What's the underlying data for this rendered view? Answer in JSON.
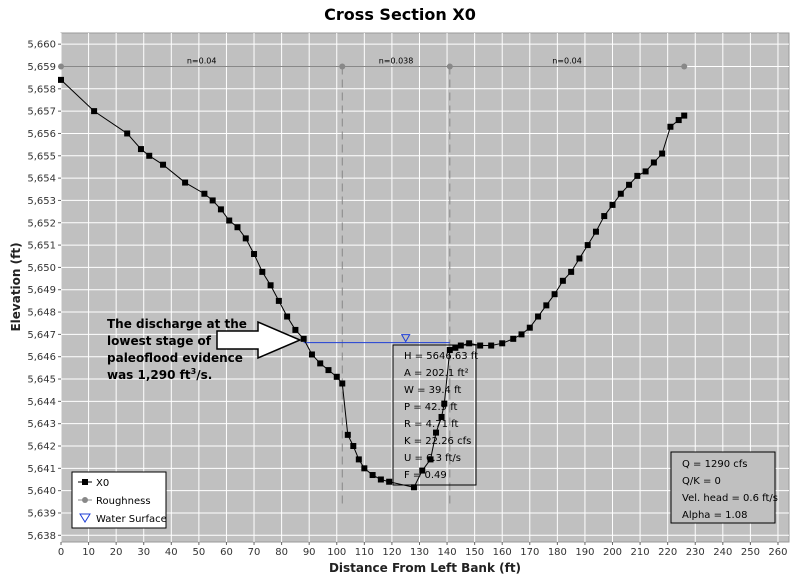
{
  "chart_data": {
    "type": "line",
    "title": "Cross Section X0",
    "xlabel": "Distance From Left Bank (ft)",
    "ylabel": "Elevation (ft)",
    "xlim": [
      0,
      264
    ],
    "ylim": [
      5637.7,
      5660.5
    ],
    "xticks": [
      0,
      10,
      20,
      30,
      40,
      50,
      60,
      70,
      80,
      90,
      100,
      110,
      120,
      130,
      140,
      150,
      160,
      170,
      180,
      190,
      200,
      210,
      220,
      230,
      240,
      250,
      260
    ],
    "yticks": [
      5638,
      5639,
      5640,
      5641,
      5642,
      5643,
      5644,
      5645,
      5646,
      5647,
      5648,
      5649,
      5650,
      5651,
      5652,
      5653,
      5654,
      5655,
      5656,
      5657,
      5658,
      5659,
      5660
    ],
    "ytick_labels": [
      "5,638",
      "5,639",
      "5,640",
      "5,641",
      "5,642",
      "5,643",
      "5,644",
      "5,645",
      "5,646",
      "5,647",
      "5,648",
      "5,649",
      "5,650",
      "5,651",
      "5,652",
      "5,653",
      "5,654",
      "5,655",
      "5,656",
      "5,657",
      "5,658",
      "5,659",
      "5,660"
    ],
    "grid": true,
    "legend_placement": "bottom-left",
    "series": [
      {
        "name": "X0",
        "color": "#000000",
        "marker": "square",
        "x": [
          0,
          12,
          24,
          29,
          32,
          37,
          45,
          52,
          55,
          58,
          61,
          64,
          67,
          70,
          73,
          76,
          79,
          82,
          85,
          88,
          91,
          94,
          97,
          100,
          102,
          104,
          106,
          108,
          110,
          113,
          116,
          119,
          128,
          131,
          134,
          136,
          138,
          139,
          141,
          143,
          145,
          148,
          152,
          156,
          160,
          164,
          167,
          170,
          173,
          176,
          179,
          182,
          185,
          188,
          191,
          194,
          197,
          200,
          203,
          206,
          209,
          212,
          215,
          218,
          221,
          224,
          226
        ],
        "y": [
          5658.4,
          5657.0,
          5656.0,
          5655.3,
          5655.0,
          5654.6,
          5653.8,
          5653.3,
          5653.0,
          5652.6,
          5652.1,
          5651.8,
          5651.3,
          5650.6,
          5649.8,
          5649.2,
          5648.5,
          5647.8,
          5647.2,
          5646.8,
          5646.1,
          5645.7,
          5645.4,
          5645.1,
          5644.8,
          5642.5,
          5642.0,
          5641.4,
          5641.0,
          5640.7,
          5640.5,
          5640.4,
          5640.15,
          5640.9,
          5641.4,
          5642.6,
          5643.3,
          5643.9,
          5646.3,
          5646.4,
          5646.5,
          5646.6,
          5646.5,
          5646.5,
          5646.6,
          5646.8,
          5647.0,
          5647.3,
          5647.8,
          5648.3,
          5648.8,
          5649.4,
          5649.8,
          5650.4,
          5651.0,
          5651.6,
          5652.3,
          5652.8,
          5653.3,
          5653.7,
          5654.1,
          5654.3,
          5654.7,
          5655.1,
          5656.3,
          5656.6,
          5656.8
        ]
      },
      {
        "name": "Roughness",
        "color": "#888888",
        "marker": "circle",
        "x": [
          0,
          102,
          141,
          226
        ],
        "y": [
          5659.0,
          5659.0,
          5659.0,
          5659.0
        ]
      },
      {
        "name": "Water Surface",
        "color": "#1f3fd6",
        "marker": "triangle-down",
        "x": [
          88,
          141
        ],
        "y": [
          5646.63,
          5646.63
        ],
        "marker_x": 125
      }
    ],
    "roughness_labels": [
      {
        "text": "n=0.04",
        "x": 51
      },
      {
        "text": "n=0.038",
        "x": 121.5
      },
      {
        "text": "n=0.04",
        "x": 183.5
      }
    ],
    "roughness_dividers_x": [
      102,
      141
    ],
    "hydraulics_box": [
      "H = 5646.63 ft",
      "A = 202.1 ft²",
      "W = 39.4 ft",
      "P = 42.9 ft",
      "R = 4.71 ft",
      "K = 22.26 cfs",
      "U = 6.3 ft/s",
      "F = 0.49"
    ],
    "results_box": [
      "Q = 1290 cfs",
      "Q/K = 0",
      "Vel. head = 0.6 ft/s",
      "Alpha = 1.08"
    ],
    "annotation": {
      "lines": [
        "The discharge at the",
        "lowest stage of",
        "paleoflood evidence"
      ],
      "last_line_prefix": "was 1,290 ft",
      "last_line_sup": "3",
      "last_line_suffix": "/s."
    },
    "colors": {
      "plot_background": "#c0c0c0",
      "grid": "#ffffff",
      "profile": "#000000",
      "roughness": "#888888",
      "water_surface": "#1f3fd6"
    }
  }
}
